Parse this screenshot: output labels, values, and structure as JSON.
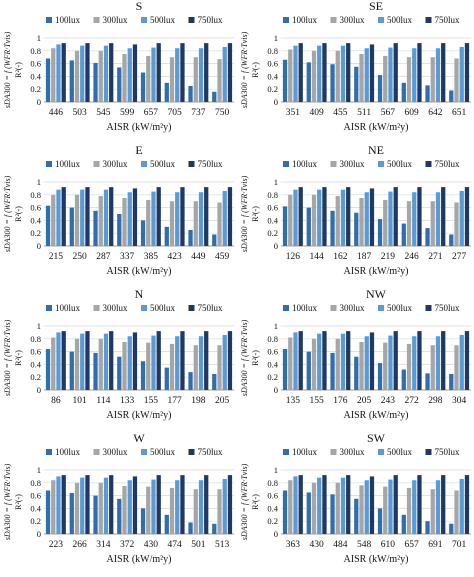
{
  "figure": {
    "legend_labels": [
      "100lux",
      "300lux",
      "500lux",
      "750lux"
    ],
    "colors": [
      "#2f6fb0",
      "#a6a6a6",
      "#5b9bd5",
      "#1f3864"
    ],
    "ylabel_left": "sDA300 = f (WFR·Tvis)",
    "ylabel_right": "R²(-)",
    "xlabel": "AISR (kW/m²y)"
  },
  "chart_data": [
    {
      "type": "bar",
      "title": "S",
      "categories": [
        "446",
        "503",
        "545",
        "599",
        "657",
        "705",
        "737",
        "750"
      ],
      "series": [
        {
          "name": "100lux",
          "values": [
            0.68,
            0.65,
            0.61,
            0.54,
            0.46,
            0.3,
            0.25,
            0.16
          ]
        },
        {
          "name": "300lux",
          "values": [
            0.84,
            0.8,
            0.8,
            0.75,
            0.72,
            0.7,
            0.7,
            0.67
          ]
        },
        {
          "name": "500lux",
          "values": [
            0.9,
            0.88,
            0.88,
            0.84,
            0.85,
            0.84,
            0.84,
            0.86
          ]
        },
        {
          "name": "750lux",
          "values": [
            0.92,
            0.92,
            0.92,
            0.9,
            0.92,
            0.92,
            0.92,
            0.92
          ]
        }
      ],
      "ylim": [
        0,
        1
      ]
    },
    {
      "type": "bar",
      "title": "SE",
      "categories": [
        "351",
        "409",
        "455",
        "511",
        "567",
        "609",
        "642",
        "651"
      ],
      "series": [
        {
          "name": "100lux",
          "values": [
            0.66,
            0.62,
            0.59,
            0.55,
            0.42,
            0.3,
            0.26,
            0.18
          ]
        },
        {
          "name": "300lux",
          "values": [
            0.82,
            0.8,
            0.8,
            0.75,
            0.72,
            0.7,
            0.7,
            0.68
          ]
        },
        {
          "name": "500lux",
          "values": [
            0.88,
            0.88,
            0.88,
            0.84,
            0.85,
            0.84,
            0.84,
            0.86
          ]
        },
        {
          "name": "750lux",
          "values": [
            0.92,
            0.92,
            0.92,
            0.9,
            0.92,
            0.92,
            0.92,
            0.92
          ]
        }
      ],
      "ylim": [
        0,
        1
      ]
    },
    {
      "type": "bar",
      "title": "E",
      "categories": [
        "215",
        "250",
        "287",
        "337",
        "385",
        "423",
        "449",
        "459"
      ],
      "series": [
        {
          "name": "100lux",
          "values": [
            0.63,
            0.6,
            0.55,
            0.5,
            0.4,
            0.3,
            0.25,
            0.18
          ]
        },
        {
          "name": "300lux",
          "values": [
            0.8,
            0.8,
            0.78,
            0.75,
            0.72,
            0.7,
            0.7,
            0.68
          ]
        },
        {
          "name": "500lux",
          "values": [
            0.88,
            0.88,
            0.88,
            0.84,
            0.85,
            0.84,
            0.84,
            0.86
          ]
        },
        {
          "name": "750lux",
          "values": [
            0.92,
            0.92,
            0.92,
            0.9,
            0.92,
            0.92,
            0.92,
            0.92
          ]
        }
      ],
      "ylim": [
        0,
        1
      ]
    },
    {
      "type": "bar",
      "title": "NE",
      "categories": [
        "126",
        "144",
        "162",
        "187",
        "219",
        "246",
        "271",
        "277"
      ],
      "series": [
        {
          "name": "100lux",
          "values": [
            0.62,
            0.6,
            0.55,
            0.52,
            0.42,
            0.35,
            0.28,
            0.18
          ]
        },
        {
          "name": "300lux",
          "values": [
            0.8,
            0.8,
            0.78,
            0.75,
            0.72,
            0.7,
            0.7,
            0.68
          ]
        },
        {
          "name": "500lux",
          "values": [
            0.88,
            0.88,
            0.88,
            0.84,
            0.85,
            0.84,
            0.84,
            0.86
          ]
        },
        {
          "name": "750lux",
          "values": [
            0.92,
            0.92,
            0.92,
            0.9,
            0.92,
            0.92,
            0.92,
            0.92
          ]
        }
      ],
      "ylim": [
        0,
        1
      ]
    },
    {
      "type": "bar",
      "title": "N",
      "categories": [
        "86",
        "101",
        "114",
        "133",
        "155",
        "177",
        "198",
        "205"
      ],
      "series": [
        {
          "name": "100lux",
          "values": [
            0.64,
            0.6,
            0.58,
            0.52,
            0.45,
            0.35,
            0.28,
            0.25
          ]
        },
        {
          "name": "300lux",
          "values": [
            0.82,
            0.8,
            0.8,
            0.75,
            0.74,
            0.72,
            0.7,
            0.7
          ]
        },
        {
          "name": "500lux",
          "values": [
            0.9,
            0.88,
            0.88,
            0.84,
            0.85,
            0.84,
            0.84,
            0.86
          ]
        },
        {
          "name": "750lux",
          "values": [
            0.92,
            0.92,
            0.92,
            0.9,
            0.92,
            0.92,
            0.92,
            0.92
          ]
        }
      ],
      "ylim": [
        0,
        1
      ]
    },
    {
      "type": "bar",
      "title": "NW",
      "categories": [
        "135",
        "155",
        "176",
        "205",
        "243",
        "272",
        "298",
        "304"
      ],
      "series": [
        {
          "name": "100lux",
          "values": [
            0.64,
            0.6,
            0.58,
            0.52,
            0.42,
            0.32,
            0.26,
            0.25
          ]
        },
        {
          "name": "300lux",
          "values": [
            0.82,
            0.8,
            0.8,
            0.75,
            0.74,
            0.72,
            0.7,
            0.7
          ]
        },
        {
          "name": "500lux",
          "values": [
            0.9,
            0.88,
            0.88,
            0.84,
            0.85,
            0.84,
            0.84,
            0.86
          ]
        },
        {
          "name": "750lux",
          "values": [
            0.92,
            0.92,
            0.92,
            0.9,
            0.92,
            0.92,
            0.92,
            0.92
          ]
        }
      ],
      "ylim": [
        0,
        1
      ]
    },
    {
      "type": "bar",
      "title": "W",
      "categories": [
        "223",
        "266",
        "314",
        "372",
        "430",
        "474",
        "501",
        "513"
      ],
      "series": [
        {
          "name": "100lux",
          "values": [
            0.68,
            0.64,
            0.6,
            0.55,
            0.4,
            0.3,
            0.18,
            0.16
          ]
        },
        {
          "name": "300lux",
          "values": [
            0.84,
            0.8,
            0.8,
            0.75,
            0.74,
            0.72,
            0.7,
            0.7
          ]
        },
        {
          "name": "500lux",
          "values": [
            0.9,
            0.88,
            0.88,
            0.84,
            0.85,
            0.84,
            0.84,
            0.86
          ]
        },
        {
          "name": "750lux",
          "values": [
            0.92,
            0.92,
            0.92,
            0.9,
            0.92,
            0.92,
            0.92,
            0.92
          ]
        }
      ],
      "ylim": [
        0,
        1
      ]
    },
    {
      "type": "bar",
      "title": "SW",
      "categories": [
        "363",
        "430",
        "484",
        "548",
        "610",
        "657",
        "691",
        "701"
      ],
      "series": [
        {
          "name": "100lux",
          "values": [
            0.68,
            0.65,
            0.62,
            0.55,
            0.4,
            0.3,
            0.2,
            0.16
          ]
        },
        {
          "name": "300lux",
          "values": [
            0.84,
            0.8,
            0.8,
            0.76,
            0.74,
            0.72,
            0.7,
            0.68
          ]
        },
        {
          "name": "500lux",
          "values": [
            0.9,
            0.88,
            0.88,
            0.84,
            0.85,
            0.84,
            0.84,
            0.86
          ]
        },
        {
          "name": "750lux",
          "values": [
            0.92,
            0.92,
            0.92,
            0.9,
            0.92,
            0.92,
            0.92,
            0.92
          ]
        }
      ],
      "ylim": [
        0,
        1
      ]
    }
  ]
}
